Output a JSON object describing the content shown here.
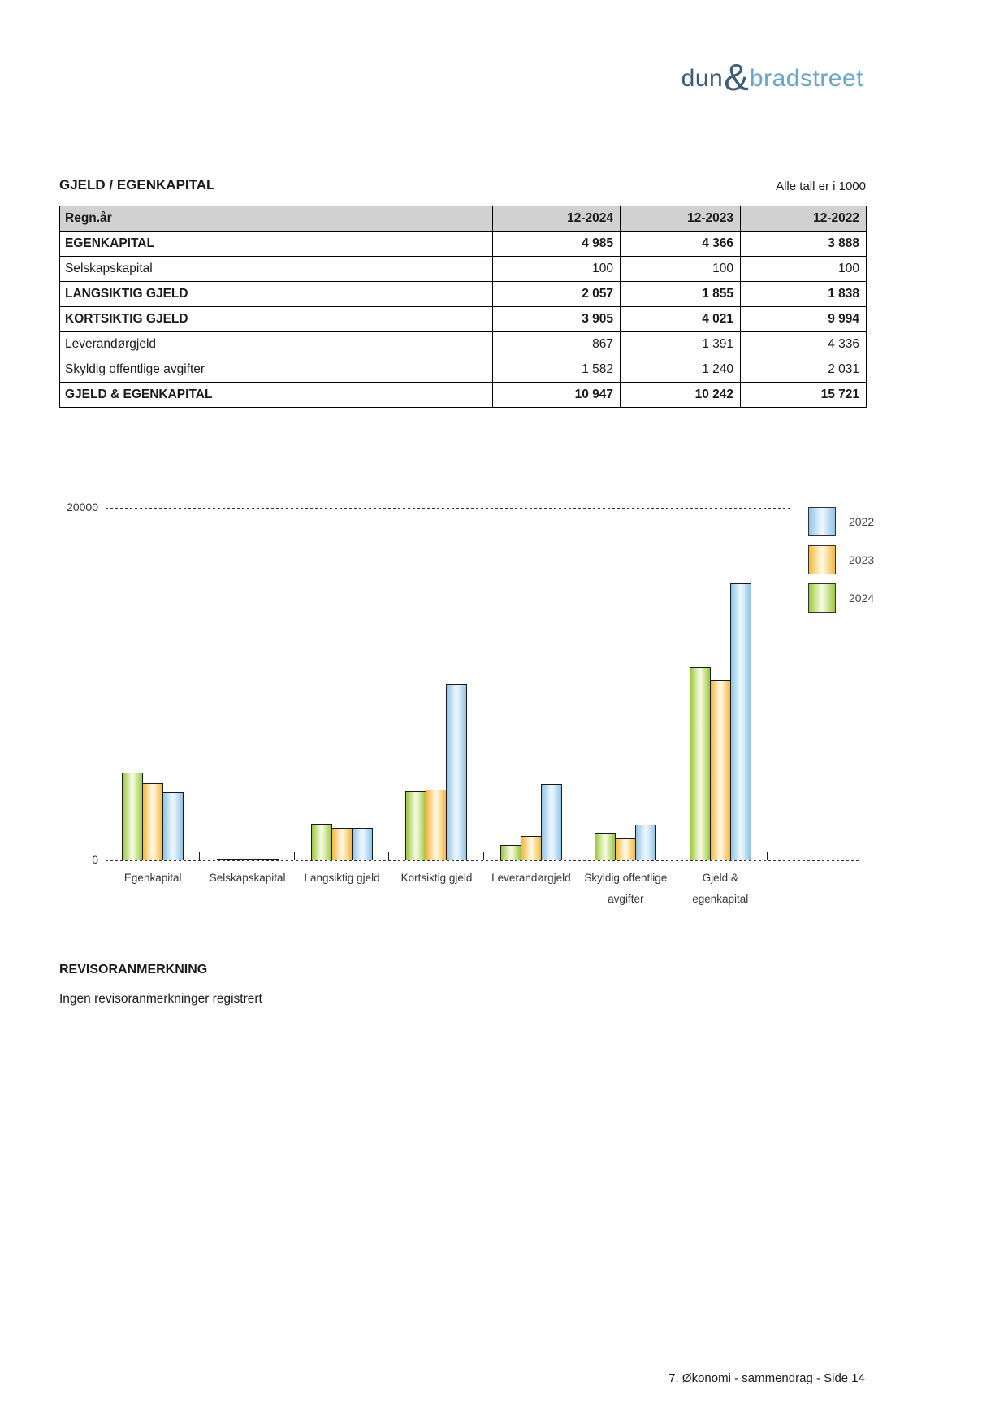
{
  "logo": {
    "word1": "dun",
    "ampersand": "&",
    "word2": "bradstreet",
    "color_dark": "#3e5c77",
    "color_light": "#6ba5c9"
  },
  "section": {
    "title": "GJELD / EGENKAPITAL",
    "note": "Alle tall er i 1000"
  },
  "table": {
    "header": [
      "Regn.år",
      "12-2024",
      "12-2023",
      "12-2022"
    ],
    "rows": [
      {
        "label": "EGENKAPITAL",
        "values": [
          "4 985",
          "4 366",
          "3 888"
        ]
      },
      {
        "label": "Selskapskapital",
        "values": [
          "100",
          "100",
          "100"
        ]
      },
      {
        "label": "LANGSIKTIG GJELD",
        "values": [
          "2 057",
          "1 855",
          "1 838"
        ]
      },
      {
        "label": "KORTSIKTIG GJELD",
        "values": [
          "3 905",
          "4 021",
          "9 994"
        ]
      },
      {
        "label": "Leverandørgjeld",
        "values": [
          "867",
          "1 391",
          "4 336"
        ]
      },
      {
        "label": "Skyldig offentlige avgifter",
        "values": [
          "1 582",
          "1 240",
          "2 031"
        ]
      },
      {
        "label": "GJELD & EGENKAPITAL",
        "values": [
          "10 947",
          "10 242",
          "15 721"
        ]
      }
    ]
  },
  "chart_data": {
    "type": "bar",
    "title": "",
    "xlabel": "",
    "ylabel": "",
    "ylim": [
      0,
      20000
    ],
    "yticks": [
      "20000",
      "0"
    ],
    "grid": "dotted top gridline at 20000 and dotted baseline at 0",
    "legend_position": "top-right",
    "legend": [
      "2022",
      "2023",
      "2024"
    ],
    "categories": [
      "Egenkapital",
      "Selskapskapital",
      "Langsiktig gjeld",
      "Kortsiktig gjeld",
      "Leverandørgjeld",
      "Skyldig offentlige\navgifter",
      "Gjeld &\negenkapital"
    ],
    "series": [
      {
        "name": "2024",
        "color_edge": "#9bc83d",
        "color_mid": "#f2f8da",
        "values": [
          4985,
          100,
          2057,
          3905,
          867,
          1582,
          10947
        ]
      },
      {
        "name": "2023",
        "color_edge": "#f4b73e",
        "color_mid": "#fef5dc",
        "values": [
          4366,
          100,
          1855,
          4021,
          1391,
          1240,
          10242
        ]
      },
      {
        "name": "2022",
        "color_edge": "#90c3e9",
        "color_mid": "#e9f4fc",
        "values": [
          3888,
          100,
          1838,
          9994,
          4336,
          2031,
          15721
        ]
      }
    ]
  },
  "revisor": {
    "heading": "REVISORANMERKNING",
    "text": "Ingen revisoranmerkninger registrert"
  },
  "footer": {
    "text": "7. Økonomi - sammendrag - Side 14"
  }
}
